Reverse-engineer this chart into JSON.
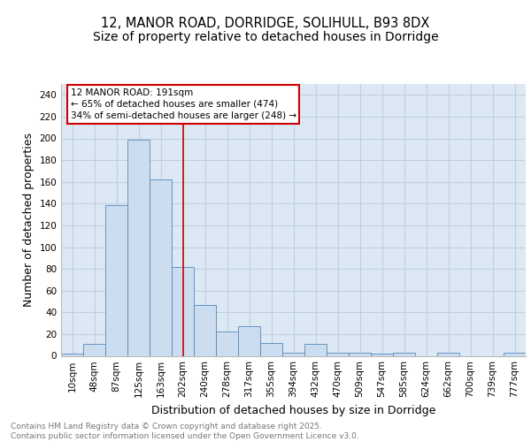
{
  "title1": "12, MANOR ROAD, DORRIDGE, SOLIHULL, B93 8DX",
  "title2": "Size of property relative to detached houses in Dorridge",
  "xlabel": "Distribution of detached houses by size in Dorridge",
  "ylabel": "Number of detached properties",
  "bin_labels": [
    "10sqm",
    "48sqm",
    "87sqm",
    "125sqm",
    "163sqm",
    "202sqm",
    "240sqm",
    "278sqm",
    "317sqm",
    "355sqm",
    "394sqm",
    "432sqm",
    "470sqm",
    "509sqm",
    "547sqm",
    "585sqm",
    "624sqm",
    "662sqm",
    "700sqm",
    "739sqm",
    "777sqm"
  ],
  "bar_values": [
    2,
    11,
    139,
    199,
    162,
    82,
    47,
    22,
    27,
    12,
    3,
    11,
    3,
    3,
    2,
    3,
    0,
    3,
    0,
    0,
    3
  ],
  "bar_color": "#ccddf0",
  "bar_edge_color": "#5588bb",
  "grid_color": "#c0d0e0",
  "background_color": "#dce8f4",
  "red_line_x": 5.0,
  "ylim": [
    0,
    250
  ],
  "yticks": [
    0,
    20,
    40,
    60,
    80,
    100,
    120,
    140,
    160,
    180,
    200,
    220,
    240
  ],
  "annotation_text": "12 MANOR ROAD: 191sqm\n← 65% of detached houses are smaller (474)\n34% of semi-detached houses are larger (248) →",
  "annotation_box_color": "white",
  "annotation_box_edge": "#cc0000",
  "footer_text": "Contains HM Land Registry data © Crown copyright and database right 2025.\nContains public sector information licensed under the Open Government Licence v3.0.",
  "title1_fontsize": 10.5,
  "title2_fontsize": 10,
  "axis_label_fontsize": 9,
  "tick_fontsize": 7.5,
  "footer_fontsize": 6.5,
  "annot_fontsize": 7.5
}
